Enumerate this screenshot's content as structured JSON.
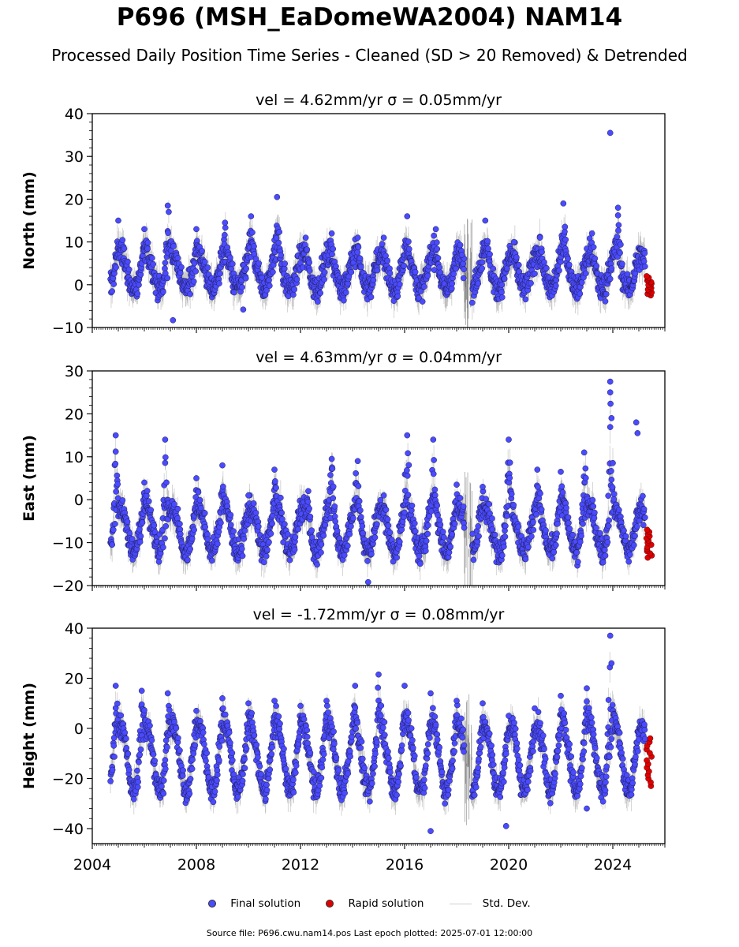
{
  "title": "P696 (MSH_EaDomeWA2004) NAM14",
  "subtitle": "Processed Daily Position Time Series - Cleaned (SD > 20 Removed) & Detrended",
  "legend": {
    "final": "Final solution",
    "rapid": "Rapid solution",
    "std": "Std. Dev."
  },
  "footer": "Source file: P696.cwu.nam14.pos  Last epoch plotted: 2025-07-01 12:00:00",
  "colors": {
    "final": "#4a4aff",
    "rapid": "#e00000",
    "std": "#a0a0a0"
  },
  "chart_data": [
    {
      "type": "scatter",
      "title": "vel = 4.62mm/yr   σ = 0.05mm/yr",
      "ylabel": "North (mm)",
      "ylim": [
        -10,
        40
      ],
      "yticks": [
        -10,
        0,
        10,
        20,
        30,
        40
      ],
      "xlim": [
        2004,
        2026
      ],
      "xticks": [
        "2004",
        "2008",
        "2012",
        "2016",
        "2020",
        "2024"
      ],
      "show_xtick_labels": false,
      "seasonal": {
        "mean": 3,
        "amplitude": 4,
        "noise": 3
      },
      "annual_peaks": [
        [
          2005.0,
          15
        ],
        [
          2006.0,
          13
        ],
        [
          2006.9,
          18.5
        ],
        [
          2008.0,
          13
        ],
        [
          2009.1,
          14.5
        ],
        [
          2010.1,
          16
        ],
        [
          2011.1,
          20.5
        ],
        [
          2012.2,
          11
        ],
        [
          2013.2,
          12
        ],
        [
          2014.2,
          11
        ],
        [
          2015.2,
          11
        ],
        [
          2016.1,
          16
        ],
        [
          2017.2,
          13
        ],
        [
          2018.2,
          7
        ],
        [
          2019.1,
          15
        ],
        [
          2020.2,
          10
        ],
        [
          2021.2,
          11
        ],
        [
          2022.1,
          19
        ],
        [
          2023.2,
          12
        ],
        [
          2024.2,
          18
        ]
      ],
      "outliers": [
        [
          2023.9,
          35.5
        ],
        [
          2007.1,
          -8.3
        ],
        [
          2009.8,
          -5.8
        ]
      ],
      "rapid": {
        "x": [
          2025.3,
          2025.5
        ],
        "y": [
          -2.5,
          2
        ]
      },
      "gap": [
        2018.3,
        2018.6
      ]
    },
    {
      "type": "scatter",
      "title": "vel = 4.63mm/yr   σ = 0.04mm/yr",
      "ylabel": "East (mm)",
      "ylim": [
        -20,
        30
      ],
      "yticks": [
        -20,
        -10,
        0,
        10,
        20,
        30
      ],
      "xlim": [
        2004,
        2026
      ],
      "xticks": [
        "2004",
        "2008",
        "2012",
        "2016",
        "2020",
        "2024"
      ],
      "show_xtick_labels": false,
      "seasonal": {
        "mean": -7,
        "amplitude": 5,
        "noise": 3
      },
      "annual_peaks": [
        [
          2004.9,
          15
        ],
        [
          2006.0,
          4
        ],
        [
          2006.8,
          14
        ],
        [
          2008.0,
          5
        ],
        [
          2009.0,
          8
        ],
        [
          2010.0,
          1
        ],
        [
          2011.0,
          7
        ],
        [
          2012.3,
          2
        ],
        [
          2013.2,
          9.5
        ],
        [
          2014.2,
          9
        ],
        [
          2015.2,
          1
        ],
        [
          2016.1,
          15
        ],
        [
          2017.1,
          14
        ],
        [
          2018.0,
          3.5
        ],
        [
          2019.0,
          3
        ],
        [
          2020.0,
          14
        ],
        [
          2021.1,
          7
        ],
        [
          2022.0,
          6.5
        ],
        [
          2022.9,
          11
        ],
        [
          2023.9,
          27.5
        ]
      ],
      "outliers": [
        [
          2023.9,
          25
        ],
        [
          2023.95,
          19
        ],
        [
          2024.9,
          18
        ],
        [
          2024.95,
          15.5
        ],
        [
          2014.6,
          -19.2
        ]
      ],
      "rapid": {
        "x": [
          2025.3,
          2025.5
        ],
        "y": [
          -13.5,
          -7
        ]
      },
      "gap": [
        2018.3,
        2018.6
      ]
    },
    {
      "type": "scatter",
      "title": "vel = -1.72mm/yr   σ = 0.08mm/yr",
      "ylabel": "Height (mm)",
      "ylim": [
        -46,
        40
      ],
      "yticks": [
        -40,
        -20,
        0,
        20,
        40
      ],
      "xlim": [
        2004,
        2026
      ],
      "xticks": [
        "2004",
        "2008",
        "2012",
        "2016",
        "2020",
        "2024"
      ],
      "show_xtick_labels": true,
      "seasonal": {
        "mean": -12,
        "amplitude": 13,
        "noise": 5
      },
      "annual_peaks": [
        [
          2004.9,
          17
        ],
        [
          2005.9,
          15
        ],
        [
          2006.9,
          14
        ],
        [
          2008.0,
          7
        ],
        [
          2009.0,
          12
        ],
        [
          2010.0,
          10
        ],
        [
          2011.0,
          11
        ],
        [
          2012.0,
          9
        ],
        [
          2013.0,
          11
        ],
        [
          2014.1,
          17
        ],
        [
          2015.0,
          21.5
        ],
        [
          2016.0,
          17
        ],
        [
          2017.0,
          14
        ],
        [
          2018.0,
          11
        ],
        [
          2019.0,
          10
        ],
        [
          2020.0,
          5
        ],
        [
          2021.0,
          8
        ],
        [
          2022.0,
          13
        ],
        [
          2023.0,
          16
        ],
        [
          2023.9,
          37
        ]
      ],
      "outliers": [
        [
          2023.95,
          26
        ],
        [
          2017.0,
          -41
        ],
        [
          2019.9,
          -39
        ],
        [
          2023.0,
          -32
        ]
      ],
      "rapid": {
        "x": [
          2025.3,
          2025.5
        ],
        "y": [
          -23,
          -4
        ]
      },
      "gap": [
        2018.3,
        2018.6
      ]
    }
  ]
}
